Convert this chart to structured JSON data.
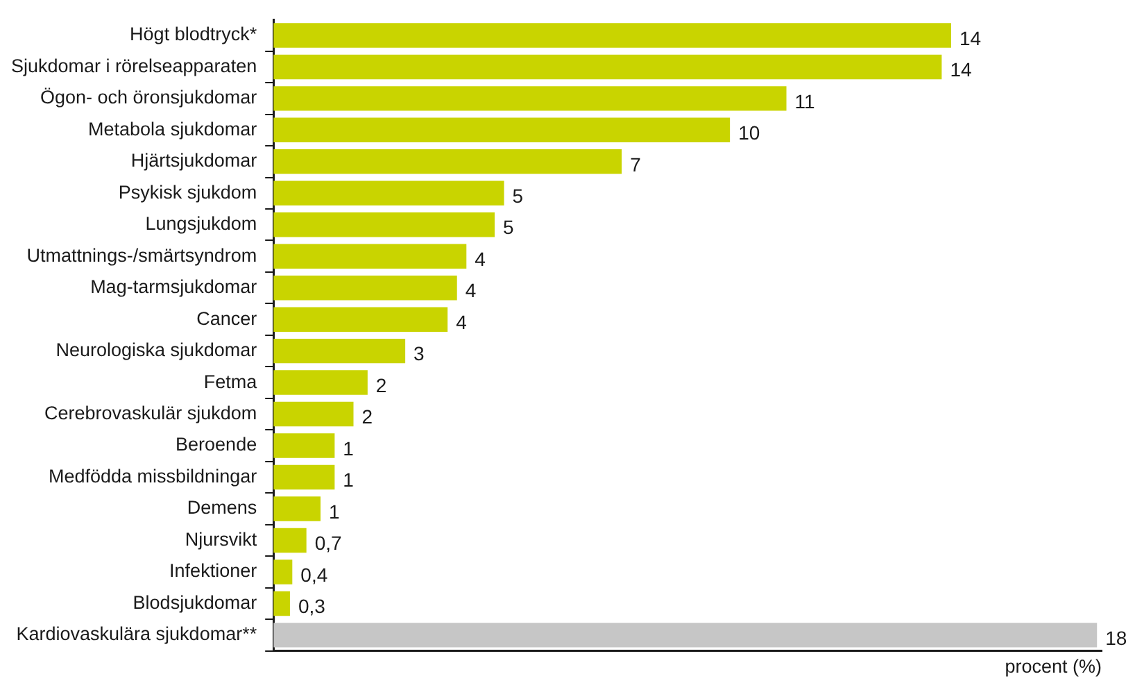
{
  "chart_data": {
    "type": "bar",
    "orientation": "horizontal",
    "xlabel": "procent (%)",
    "categories": [
      "Högt blodtryck*",
      "Sjukdomar i rörelseapparaten",
      "Ögon- och öronsjukdomar",
      "Metabola sjukdomar",
      "Hjärtsjukdomar",
      "Psykisk sjukdom",
      "Lungsjukdom",
      "Utmattnings-/smärtsyndrom",
      "Mag-tarmsjukdomar",
      "Cancer",
      "Neurologiska sjukdomar",
      "Fetma",
      "Cerebrovaskulär sjukdom",
      "Beroende",
      "Medfödda missbildningar",
      "Demens",
      "Njursvikt",
      "Infektioner",
      "Blodsjukdomar",
      "Kardiovaskulära sjukdomar**"
    ],
    "values": [
      14.4,
      14.2,
      10.9,
      9.7,
      7.4,
      4.9,
      4.7,
      4.1,
      3.9,
      3.7,
      2.8,
      2.0,
      1.7,
      1.3,
      1.3,
      1.0,
      0.7,
      0.4,
      0.35,
      17.5
    ],
    "value_labels": [
      "14",
      "14",
      "11",
      "10",
      "7",
      "5",
      "5",
      "4",
      "4",
      "4",
      "3",
      "2",
      "2",
      "1",
      "1",
      "1",
      "0,7",
      "0,4",
      "0,3",
      "18"
    ],
    "colors": [
      "#c9d400",
      "#c9d400",
      "#c9d400",
      "#c9d400",
      "#c9d400",
      "#c9d400",
      "#c9d400",
      "#c9d400",
      "#c9d400",
      "#c9d400",
      "#c9d400",
      "#c9d400",
      "#c9d400",
      "#c9d400",
      "#c9d400",
      "#c9d400",
      "#c9d400",
      "#c9d400",
      "#c9d400",
      "#c6c6c6"
    ],
    "xlim": [
      0,
      17.6
    ],
    "tick_labels": "y",
    "legend": false
  }
}
